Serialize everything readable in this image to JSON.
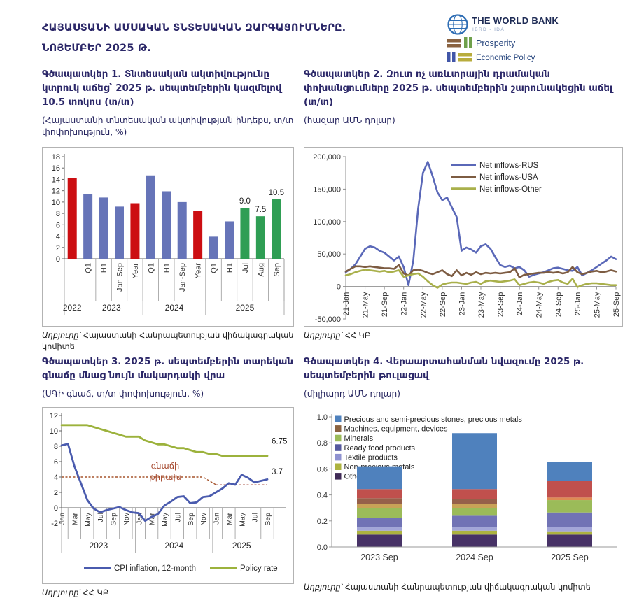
{
  "header": {
    "title_line1": "ՀԱՅԱՍՏԱՆԻ ԱՄՍԱԿԱՆ ՏՆՏԵՍԱԿԱՆ ԶԱՐԳԱՑՈՒՄՆԵՐԸ.",
    "title_line2": "ՆՈՅԵՄԲԵՐ 2025 Թ.",
    "logo": {
      "bank_name": "THE WORLD BANK",
      "bank_sub": "IBRD - IDA",
      "unit_top": "Prosperity",
      "unit_bottom": "Economic Policy"
    }
  },
  "figures": {
    "fig1": {
      "title": "Գծապատկեր 1. Տնտեսական ակտիվությունը կտրուկ աճեց՝ 2025 թ. սեպտեմբերին կազմելով 10.5 տոկոս (տ/տ)",
      "subtitle": "(Հայաստանի տնտեսական ակտիվության ինդեքս, տ/տ փոփոխություն, %)",
      "source_prefix": "Աղբյուրը՝",
      "source_rest": "Հայաստանի Հանրապետության վիճակագրական կոմիտե"
    },
    "fig2": {
      "title": "Գծապատկեր 2.  Զուտ ոչ առևտրային դրամական փոխանցումները 2025 թ. սեպտեմբերին շարունակեցին աճել (տ/տ)",
      "subtitle": "(հազար ԱՄՆ դոլար)",
      "source_prefix": "Աղբյուրը՝",
      "source_rest": "ՀՀ ԿԲ"
    },
    "fig3": {
      "title": "Գծապատկեր 3. 2025 թ. սեպտեմբերին տարեկան գնաճը մնաց նույն մակարդակի վրա",
      "subtitle": "(ՍԳԻ գնաճ, տ/տ փոփոխություն, %)",
      "source_prefix": "Աղբյուրը՝",
      "source_rest": "ՀՀ ԿԲ"
    },
    "fig4": {
      "title": "Գծապատկեր 4. Վերաարտահանման նվազումը 2025 թ. սեպտեմբերին թուլացավ",
      "subtitle": "(միլիարդ ԱՄՆ դոլար)",
      "source_prefix": "Աղբյուրը՝",
      "source_rest": "Հայաստանի Հանրապետության վիճակագրական կոմիտե"
    }
  },
  "chart_data": [
    {
      "id": "fig1",
      "type": "bar",
      "title": "Հայաստանի տնտեսական ակտիվության ինդեքս, տ/տ փոփոխություն, %",
      "categories": [
        "",
        "Q1",
        "H1",
        "Jan-Sep",
        "Year",
        "Q1",
        "H1",
        "Jan-Sep",
        "Year",
        "Q1",
        "H1",
        "Jul",
        "Aug",
        "Sep"
      ],
      "year_groups": [
        {
          "label": "2022",
          "count": 1
        },
        {
          "label": "2023",
          "count": 4
        },
        {
          "label": "2024",
          "count": 4
        },
        {
          "label": "2025",
          "count": 5
        }
      ],
      "values": [
        14.2,
        11.4,
        10.8,
        9.2,
        9.8,
        14.7,
        11.9,
        10.0,
        8.4,
        3.9,
        6.6,
        9.0,
        7.5,
        10.5
      ],
      "bar_colors": [
        "#CC0E12",
        "#6674B8",
        "#6674B8",
        "#6674B8",
        "#CC0E12",
        "#6674B8",
        "#6674B8",
        "#6674B8",
        "#CC0E12",
        "#6674B8",
        "#6674B8",
        "#2F9E54",
        "#2F9E54",
        "#2F9E54"
      ],
      "data_labels": [
        "",
        "",
        "",
        "",
        "",
        "",
        "",
        "",
        "",
        "",
        "",
        "9.0",
        "7.5",
        "10.5"
      ],
      "ylim": [
        0,
        18
      ],
      "ytick": 2
    },
    {
      "id": "fig2",
      "type": "line",
      "title": "Զուտ ոչ առևտրային դրամական փոխանցումներ, հազար ԱՄՆ դոլար",
      "x_labels": [
        "21-Jan",
        "21-May",
        "21-Sep",
        "22-Jan",
        "22-May",
        "22-Sep",
        "23-Jan",
        "23-May",
        "23-Sep",
        "24-Jan",
        "24-May",
        "24-Sep",
        "25-Jan",
        "25-May",
        "25-Sep"
      ],
      "label_every": 4,
      "ylim": [
        -50000,
        200000
      ],
      "ytick": 50000,
      "legend_position": "top-right",
      "series": [
        {
          "name": "Net inflows-RUS",
          "color": "#5A68B8",
          "values": [
            22000,
            27000,
            34000,
            46000,
            58000,
            62000,
            60000,
            55000,
            52000,
            46000,
            40000,
            46000,
            30000,
            2000,
            40000,
            120000,
            175000,
            192000,
            170000,
            145000,
            133000,
            137000,
            122000,
            107000,
            55000,
            60000,
            57000,
            52000,
            62000,
            65000,
            58000,
            45000,
            33000,
            30000,
            32000,
            28000,
            30000,
            25000,
            15000,
            18000,
            20000,
            22000,
            25000,
            28000,
            29000,
            27000,
            25000,
            24000,
            30000,
            17000,
            21000,
            25000,
            30000,
            35000,
            40000,
            46000,
            42000
          ]
        },
        {
          "name": "Net inflows-USA",
          "color": "#7D5C42",
          "values": [
            23000,
            27000,
            31000,
            31000,
            30000,
            31000,
            30000,
            29000,
            28000,
            28000,
            27000,
            33000,
            20000,
            17000,
            25000,
            26000,
            24000,
            21000,
            19000,
            22000,
            25000,
            19000,
            16000,
            25000,
            17000,
            21000,
            18000,
            22000,
            19000,
            21000,
            20000,
            21000,
            20000,
            21000,
            22000,
            28000,
            14000,
            18000,
            19000,
            20000,
            21000,
            21000,
            22000,
            21000,
            22000,
            20000,
            22000,
            30000,
            22000,
            19000,
            21000,
            23000,
            24000,
            22000,
            23000,
            25000,
            23000
          ]
        },
        {
          "name": "Net inflows-Other",
          "color": "#A9B04B",
          "values": [
            17000,
            19000,
            22000,
            24000,
            26000,
            25000,
            24000,
            23000,
            24000,
            22000,
            23000,
            25000,
            15000,
            17000,
            19000,
            20000,
            15000,
            8000,
            2000,
            -2000,
            3000,
            5000,
            6000,
            6000,
            5000,
            4000,
            6000,
            7000,
            4000,
            8000,
            9000,
            8000,
            7000,
            8000,
            9000,
            11000,
            2000,
            4000,
            6000,
            7000,
            6000,
            4000,
            7000,
            9000,
            10000,
            6000,
            4000,
            12000,
            -1000,
            2000,
            4000,
            5000,
            5000,
            4000,
            3000,
            2000,
            2000
          ]
        }
      ]
    },
    {
      "id": "fig3",
      "type": "line",
      "title": "ՍԳԻ գնաճ, տ/տ փոփոխություն, %",
      "month_labels": [
        "Jan",
        "Mar",
        "May",
        "Jul",
        "Sep",
        "Nov",
        "Jan",
        "Mar",
        "May",
        "Jul",
        "Sep",
        "Nov",
        "Jan",
        "Mar",
        "May",
        "Jul",
        "Sep"
      ],
      "label_every": 2,
      "year_groups": [
        {
          "label": "2023",
          "count": 12
        },
        {
          "label": "2024",
          "count": 12
        },
        {
          "label": "2025",
          "count": 9
        }
      ],
      "ylim": [
        -2,
        12
      ],
      "ytick": 2,
      "series": [
        {
          "name": "CPI inflation, 12-month",
          "color": "#4A5BAE",
          "values": [
            8.1,
            8.3,
            5.4,
            3.2,
            1.0,
            -0.1,
            -0.6,
            -0.3,
            -0.1,
            0.1,
            -0.3,
            -0.6,
            -0.7,
            -1.7,
            -1.2,
            -0.8,
            0.3,
            0.8,
            1.4,
            1.5,
            0.6,
            0.7,
            1.4,
            1.5,
            2.0,
            2.5,
            3.2,
            3.0,
            4.3,
            3.9,
            3.3,
            3.5,
            3.7
          ]
        },
        {
          "name": "Policy rate",
          "color": "#9CB23C",
          "values": [
            10.75,
            10.75,
            10.75,
            10.75,
            10.75,
            10.5,
            10.25,
            10.0,
            9.75,
            9.5,
            9.25,
            9.25,
            9.25,
            8.75,
            8.5,
            8.25,
            8.25,
            8.0,
            7.75,
            7.75,
            7.5,
            7.25,
            7.25,
            7.0,
            7.0,
            6.75,
            6.75,
            6.75,
            6.75,
            6.75,
            6.75,
            6.75,
            6.75
          ]
        }
      ],
      "target_line": {
        "label_lines": [
          "գնաճի",
          "թիրախ"
        ],
        "segments": [
          {
            "points": [
              [
                0,
                4
              ],
              [
                22,
                4
              ],
              [
                24,
                3
              ]
            ],
            "color": "#A5542C"
          },
          {
            "points": [
              [
                24,
                3
              ],
              [
                32,
                3
              ]
            ],
            "color": "#C9928A"
          }
        ]
      },
      "end_labels": [
        {
          "text": "6.75",
          "at": 8.3
        },
        {
          "text": "3.7",
          "at": 4.35
        }
      ]
    },
    {
      "id": "fig4",
      "type": "stacked-bar",
      "title": "Վերաարտահանում, միլիարդ ԱՄՆ դոլար",
      "categories": [
        "2023 Sep",
        "2024 Sep",
        "2025 Sep"
      ],
      "ylim": [
        0,
        1.0
      ],
      "ytick": 0.2,
      "legend": [
        {
          "label": "Precious and semi-precious stones, precious metals",
          "color": "#4F81BD"
        },
        {
          "label": "Machines, equipment, devices",
          "color": "#8A6240"
        },
        {
          "label": "Minerals",
          "color": "#9BBB59"
        },
        {
          "label": "Ready food products",
          "color": "#55589E"
        },
        {
          "label": "Textile products",
          "color": "#8F92D0"
        },
        {
          "label": "Non-precious metals",
          "color": "#ADB33F"
        },
        {
          "label": "Other",
          "color": "#3F2A56"
        }
      ],
      "bars": [
        {
          "total": 0.62,
          "segments": [
            {
              "color": "#473266",
              "value": 0.095
            },
            {
              "color": "#ADB33F",
              "value": 0.03
            },
            {
              "color": "#A3A6D8",
              "value": 0.025
            },
            {
              "color": "#7173B5",
              "value": 0.075
            },
            {
              "color": "#9BBB59",
              "value": 0.075
            },
            {
              "color": "#C9A257",
              "value": 0.03
            },
            {
              "color": "#96604A",
              "value": 0.045
            },
            {
              "color": "#C0504D",
              "value": 0.07
            },
            {
              "color": "#4F81BD",
              "value": 0.175
            }
          ]
        },
        {
          "total": 0.875,
          "segments": [
            {
              "color": "#473266",
              "value": 0.095
            },
            {
              "color": "#ADB33F",
              "value": 0.03
            },
            {
              "color": "#A3A6D8",
              "value": 0.025
            },
            {
              "color": "#7173B5",
              "value": 0.09
            },
            {
              "color": "#9BBB59",
              "value": 0.06
            },
            {
              "color": "#C9A257",
              "value": 0.03
            },
            {
              "color": "#96604A",
              "value": 0.04
            },
            {
              "color": "#C0504D",
              "value": 0.075
            },
            {
              "color": "#4F81BD",
              "value": 0.43
            }
          ]
        },
        {
          "total": 0.655,
          "segments": [
            {
              "color": "#473266",
              "value": 0.095
            },
            {
              "color": "#ADB33F",
              "value": 0.025
            },
            {
              "color": "#A3A6D8",
              "value": 0.035
            },
            {
              "color": "#7173B5",
              "value": 0.11
            },
            {
              "color": "#9BBB59",
              "value": 0.095
            },
            {
              "color": "#DE8A54",
              "value": 0.02
            },
            {
              "color": "#C0504D",
              "value": 0.13
            },
            {
              "color": "#4F81BD",
              "value": 0.145
            }
          ]
        }
      ]
    }
  ]
}
